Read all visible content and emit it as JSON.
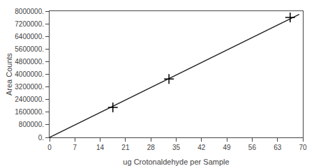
{
  "chart_data": {
    "type": "scatter",
    "xlabel": "ug Crotonaldehyde per Sample",
    "ylabel": "Area Counts",
    "xlim": [
      0,
      70
    ],
    "ylim": [
      0,
      8000000
    ],
    "xticks": [
      0,
      7,
      14,
      21,
      28,
      35,
      42,
      49,
      56,
      63,
      70
    ],
    "yticks": [
      {
        "value": 0,
        "label": "0."
      },
      {
        "value": 800000,
        "label": "800000."
      },
      {
        "value": 1600000,
        "label": "1600000."
      },
      {
        "value": 2400000,
        "label": "2400000."
      },
      {
        "value": 3200000,
        "label": "3200000."
      },
      {
        "value": 4000000,
        "label": "4000000."
      },
      {
        "value": 4800000,
        "label": "4800000."
      },
      {
        "value": 5600000,
        "label": "5600000."
      },
      {
        "value": 6400000,
        "label": "6400000."
      },
      {
        "value": 7200000,
        "label": "7200000."
      },
      {
        "value": 8000000,
        "label": "8000000."
      }
    ],
    "grid": false,
    "series": [
      {
        "type": "line",
        "line_style": "solid",
        "color": "#222222",
        "x": [
          0,
          69
        ],
        "values": [
          0,
          7797000
        ]
      },
      {
        "type": "scatter",
        "marker": "cross",
        "color": "#000000",
        "x": [
          17.5,
          33.0,
          66.5
        ],
        "values": [
          1900000,
          3700000,
          7600000
        ]
      }
    ]
  }
}
